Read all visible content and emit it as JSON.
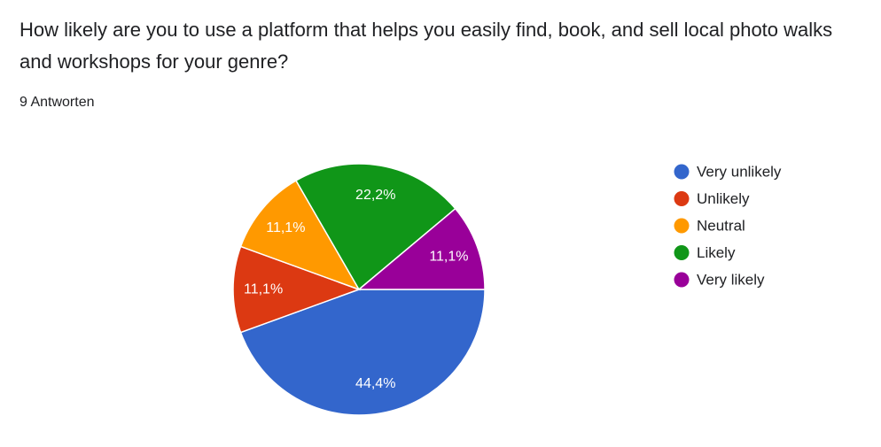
{
  "question": {
    "title": "How likely are you to use a platform that helps you easily find, book, and sell local photo walks and workshops for your genre?",
    "response_count": "9 Antworten"
  },
  "chart_data": {
    "type": "pie",
    "title": "",
    "slices": [
      {
        "label": "Very unlikely",
        "value": 44.4,
        "display": "44,4%",
        "color": "#3366cc"
      },
      {
        "label": "Unlikely",
        "value": 11.1,
        "display": "11,1%",
        "color": "#dc3912"
      },
      {
        "label": "Neutral",
        "value": 11.1,
        "display": "11,1%",
        "color": "#ff9900"
      },
      {
        "label": "Likely",
        "value": 22.2,
        "display": "22,2%",
        "color": "#109618"
      },
      {
        "label": "Very likely",
        "value": 11.1,
        "display": "11,1%",
        "color": "#990099"
      }
    ],
    "legend_position": "right"
  }
}
